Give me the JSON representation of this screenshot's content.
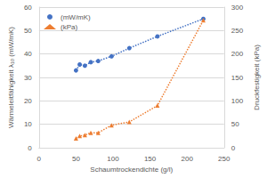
{
  "chart_data": {
    "type": "line",
    "x_label": "Schaumtrockendichte (g/l)",
    "y_label": "Wärmeleitfähigkeit λ₁₀ (mW/mK)",
    "y2_label": "Druckfestigkeit (kPa)",
    "xlim": [
      0,
      250
    ],
    "xticks": [
      0,
      50,
      100,
      150,
      200,
      250
    ],
    "ylim": [
      0,
      60
    ],
    "yticks": [
      0,
      10,
      20,
      30,
      40,
      50,
      60
    ],
    "y2lim": [
      0,
      300
    ],
    "y2ticks": [
      0,
      50,
      100,
      150,
      200,
      250,
      300
    ],
    "grid": true,
    "legend": "top-left",
    "series": [
      {
        "name": "(mW/mK)",
        "color": "#4472c4",
        "marker": "circle",
        "line_style": "dotted",
        "x": [
          50,
          55,
          62,
          70,
          80,
          98,
          122,
          160,
          222
        ],
        "values": [
          33,
          35.5,
          35,
          36.5,
          37,
          39,
          42.5,
          47.5,
          55
        ]
      },
      {
        "name": "(kPa)",
        "color": "#ed7d31",
        "marker": "triangle",
        "line_style": "dotted",
        "axis": "y2",
        "x": [
          50,
          55,
          62,
          70,
          80,
          98,
          122,
          160,
          222
        ],
        "values": [
          20,
          25,
          27,
          32,
          32,
          48,
          55,
          90,
          272
        ]
      }
    ]
  }
}
